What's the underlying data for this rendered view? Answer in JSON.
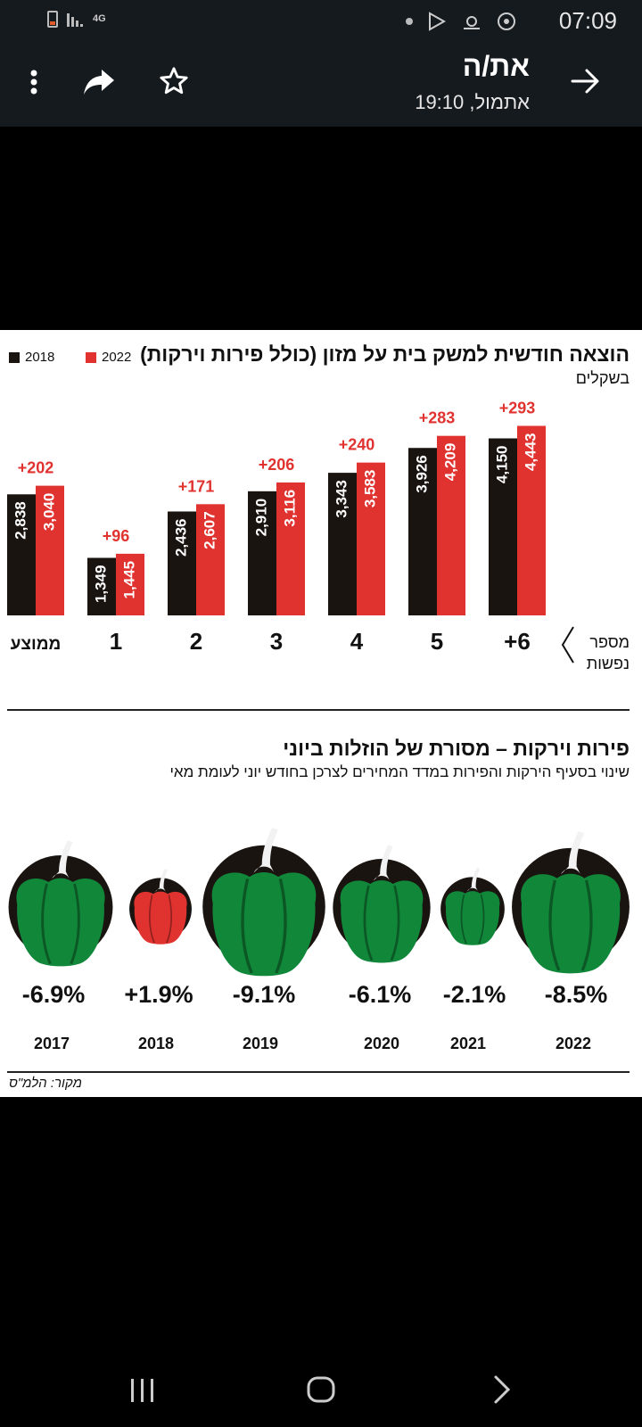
{
  "status_bar": {
    "network": "4G",
    "time": "07:09",
    "icons": [
      "battery-icon",
      "signal-icon",
      "dot-icon",
      "play-store-icon",
      "weather-icon",
      "sync-icon"
    ]
  },
  "top_bar": {
    "title": "את/ה",
    "subtitle": "אתמול, 19:10",
    "icons": [
      "more-vertical-icon",
      "share-icon",
      "star-icon",
      "arrow-right-icon"
    ]
  },
  "infographic": {
    "chart1": {
      "title": "הוצאה חודשית למשק בית על מזון (כולל פירות וירקות)",
      "subtitle": "בשקלים",
      "legend": [
        "2018",
        "2022"
      ],
      "axis_label_line1": "מספר",
      "axis_label_line2": "נפשות"
    },
    "chart2": {
      "title": "פירות וירקות – מסורת של הוזלות ביוני",
      "subtitle": "שינוי בסעיף הירקות והפירות במדד המחירים לצרכן בחודש יוני לעומת מאי"
    },
    "source": "מקור: הלמ\"ס"
  },
  "chart_data": [
    {
      "type": "bar",
      "categories": [
        "ממוצע",
        "1",
        "2",
        "3",
        "4",
        "5",
        "6+"
      ],
      "series": [
        {
          "name": "2018",
          "values": [
            2838,
            1349,
            2436,
            2910,
            3343,
            3926,
            4150
          ],
          "labels": [
            "2,838",
            "1,349",
            "2,436",
            "2,910",
            "3,343",
            "3,926",
            "4,150"
          ]
        },
        {
          "name": "2022",
          "values": [
            3040,
            1445,
            2607,
            3116,
            3583,
            4209,
            4443
          ],
          "labels": [
            "3,040",
            "1,445",
            "2,607",
            "3,116",
            "3,583",
            "4,209",
            "4,443"
          ]
        }
      ],
      "differences": [
        "+202",
        "+96",
        "+171",
        "+206",
        "+240",
        "+283",
        "+293"
      ],
      "colors": {
        "2018": "#1a1410",
        "2022": "#e03330"
      }
    },
    {
      "type": "scatter",
      "categories": [
        "2017",
        "2018",
        "2019",
        "2020",
        "2021",
        "2022"
      ],
      "values": [
        -6.9,
        1.9,
        -9.1,
        -6.1,
        -2.1,
        -8.5
      ],
      "labels": [
        "-6.9%",
        "+1.9%",
        "-9.1%",
        "-6.1%",
        "-2.1%",
        "-8.5%"
      ],
      "colors": {
        "negative": "#11873a",
        "positive": "#e03330",
        "circle": "#1a1410"
      }
    }
  ],
  "nav_bar": {
    "icons": [
      "recent-apps-icon",
      "home-icon",
      "back-icon"
    ]
  }
}
